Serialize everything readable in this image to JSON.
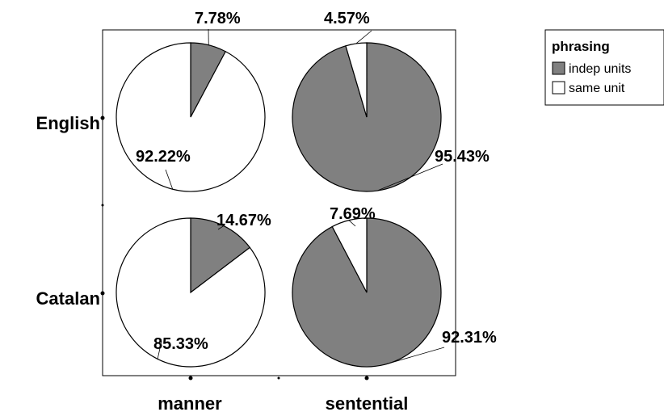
{
  "chart_data": {
    "type": "pie",
    "rows": [
      "English",
      "Catalan"
    ],
    "columns": [
      "manner",
      "sentential"
    ],
    "legend": {
      "title": "phrasing",
      "placement": "top-right",
      "entries": [
        {
          "label": "indep units",
          "color": "#808080"
        },
        {
          "label": "same unit",
          "color": "#ffffff"
        }
      ]
    },
    "pies": [
      {
        "row": "English",
        "column": "manner",
        "slices": [
          {
            "category": "indep units",
            "value": 7.78,
            "label": "7.78%"
          },
          {
            "category": "same unit",
            "value": 92.22,
            "label": "92.22%"
          }
        ]
      },
      {
        "row": "English",
        "column": "sentential",
        "slices": [
          {
            "category": "indep units",
            "value": 95.43,
            "label": "95.43%"
          },
          {
            "category": "same unit",
            "value": 4.57,
            "label": "4.57%"
          }
        ]
      },
      {
        "row": "Catalan",
        "column": "manner",
        "slices": [
          {
            "category": "indep units",
            "value": 14.67,
            "label": "14.67%"
          },
          {
            "category": "same unit",
            "value": 85.33,
            "label": "85.33%"
          }
        ]
      },
      {
        "row": "Catalan",
        "column": "sentential",
        "slices": [
          {
            "category": "indep units",
            "value": 92.31,
            "label": "92.31%"
          },
          {
            "category": "same unit",
            "value": 7.69,
            "label": "7.69%"
          }
        ]
      }
    ]
  }
}
